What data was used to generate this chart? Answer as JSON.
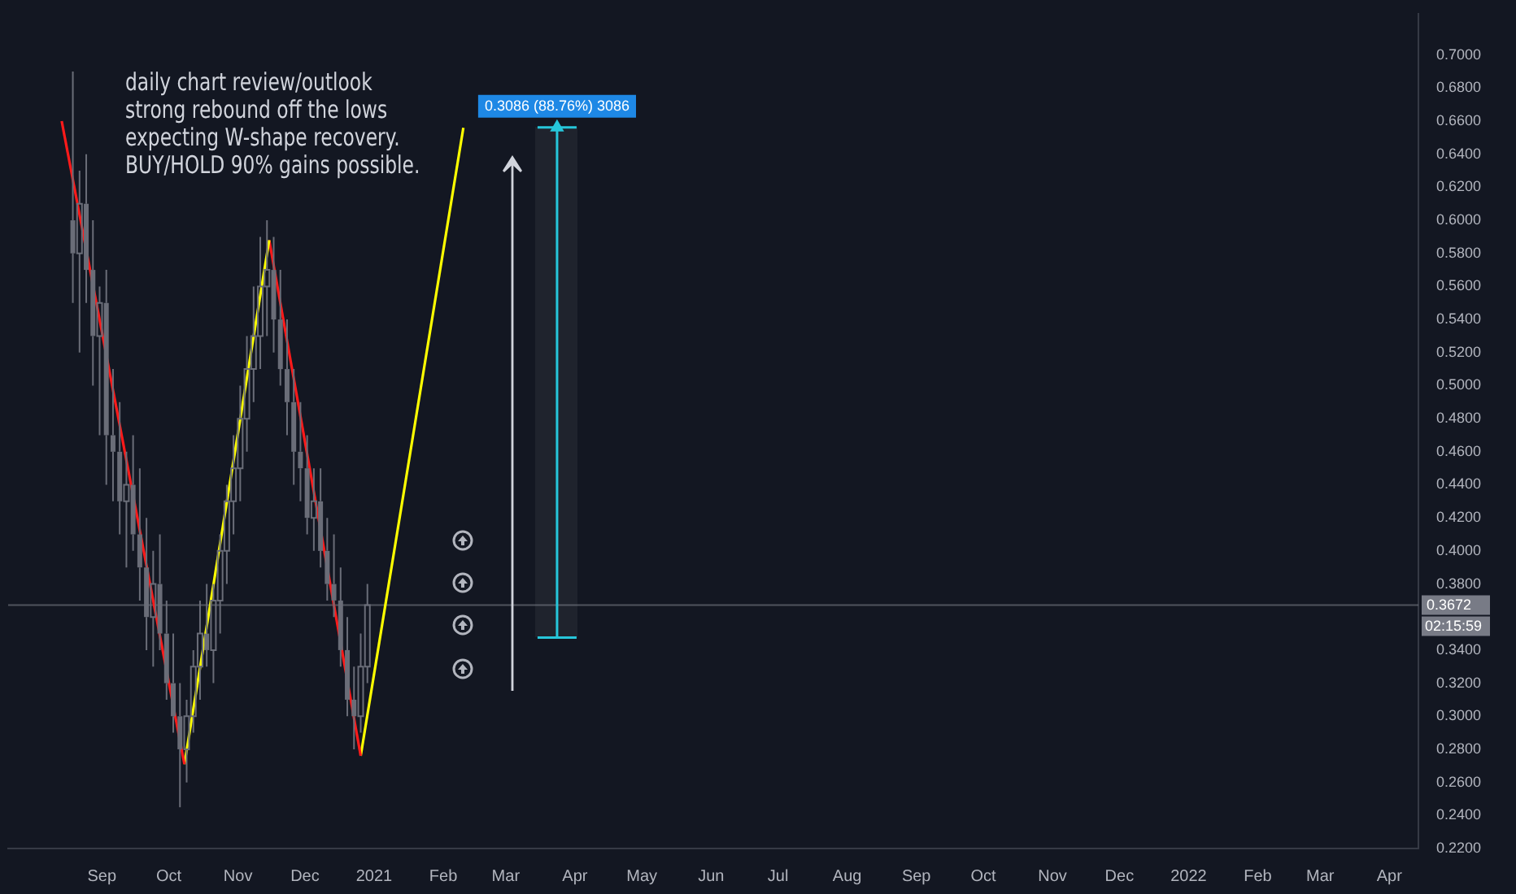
{
  "chart_data": {
    "type": "candlestick",
    "series": [
      {
        "color": "#6a6d78",
        "x": [
          "2020-08-19",
          "2020-08-22",
          "2020-08-25",
          "2020-08-28",
          "2020-08-31",
          "2020-09-03",
          "2020-09-06",
          "2020-09-09",
          "2020-09-12",
          "2020-09-15",
          "2020-09-18",
          "2020-09-21",
          "2020-09-24",
          "2020-09-27",
          "2020-09-30",
          "2020-10-03",
          "2020-10-06",
          "2020-10-09",
          "2020-10-12",
          "2020-10-15",
          "2020-10-18",
          "2020-10-21",
          "2020-10-24",
          "2020-10-27",
          "2020-10-30",
          "2020-11-02",
          "2020-11-05",
          "2020-11-08",
          "2020-11-11",
          "2020-11-14",
          "2020-11-17",
          "2020-11-20",
          "2020-11-23",
          "2020-11-26",
          "2020-11-29",
          "2020-12-02",
          "2020-12-05",
          "2020-12-08",
          "2020-12-11",
          "2020-12-14",
          "2020-12-17",
          "2020-12-20",
          "2020-12-23",
          "2020-12-26",
          "2020-12-29"
        ],
        "ohlc": [
          [
            0.6,
            0.69,
            0.55,
            0.58
          ],
          [
            0.58,
            0.63,
            0.52,
            0.61
          ],
          [
            0.61,
            0.64,
            0.55,
            0.57
          ],
          [
            0.57,
            0.6,
            0.5,
            0.53
          ],
          [
            0.53,
            0.56,
            0.47,
            0.55
          ],
          [
            0.55,
            0.57,
            0.44,
            0.47
          ],
          [
            0.47,
            0.51,
            0.43,
            0.46
          ],
          [
            0.46,
            0.49,
            0.41,
            0.43
          ],
          [
            0.43,
            0.46,
            0.39,
            0.44
          ],
          [
            0.44,
            0.47,
            0.4,
            0.41
          ],
          [
            0.41,
            0.45,
            0.37,
            0.39
          ],
          [
            0.39,
            0.42,
            0.34,
            0.36
          ],
          [
            0.36,
            0.4,
            0.33,
            0.38
          ],
          [
            0.38,
            0.41,
            0.34,
            0.35
          ],
          [
            0.35,
            0.37,
            0.31,
            0.32
          ],
          [
            0.32,
            0.35,
            0.29,
            0.3
          ],
          [
            0.3,
            0.32,
            0.245,
            0.28
          ],
          [
            0.28,
            0.31,
            0.26,
            0.3
          ],
          [
            0.3,
            0.34,
            0.29,
            0.33
          ],
          [
            0.33,
            0.37,
            0.31,
            0.35
          ],
          [
            0.35,
            0.38,
            0.33,
            0.34
          ],
          [
            0.34,
            0.38,
            0.32,
            0.37
          ],
          [
            0.37,
            0.41,
            0.35,
            0.4
          ],
          [
            0.4,
            0.44,
            0.38,
            0.43
          ],
          [
            0.43,
            0.47,
            0.41,
            0.45
          ],
          [
            0.45,
            0.5,
            0.43,
            0.48
          ],
          [
            0.48,
            0.53,
            0.46,
            0.51
          ],
          [
            0.51,
            0.56,
            0.49,
            0.53
          ],
          [
            0.53,
            0.59,
            0.51,
            0.56
          ],
          [
            0.56,
            0.6,
            0.53,
            0.57
          ],
          [
            0.57,
            0.59,
            0.52,
            0.54
          ],
          [
            0.54,
            0.57,
            0.5,
            0.51
          ],
          [
            0.51,
            0.54,
            0.47,
            0.49
          ],
          [
            0.49,
            0.51,
            0.44,
            0.46
          ],
          [
            0.46,
            0.49,
            0.43,
            0.45
          ],
          [
            0.45,
            0.47,
            0.41,
            0.42
          ],
          [
            0.42,
            0.45,
            0.4,
            0.43
          ],
          [
            0.43,
            0.45,
            0.39,
            0.4
          ],
          [
            0.4,
            0.42,
            0.37,
            0.38
          ],
          [
            0.38,
            0.41,
            0.36,
            0.37
          ],
          [
            0.37,
            0.39,
            0.33,
            0.34
          ],
          [
            0.34,
            0.36,
            0.3,
            0.31
          ],
          [
            0.31,
            0.33,
            0.28,
            0.3
          ],
          [
            0.3,
            0.35,
            0.29,
            0.33
          ],
          [
            0.33,
            0.38,
            0.32,
            0.3672
          ]
        ]
      },
      {
        "type": "line",
        "color": "#ff1a1a",
        "x": [
          "2020-08-14",
          "2020-10-08"
        ],
        "values": [
          0.66,
          0.271
        ]
      },
      {
        "type": "line",
        "color": "#ffff00",
        "x": [
          "2020-10-08",
          "2020-11-15"
        ],
        "values": [
          0.271,
          0.588
        ]
      },
      {
        "type": "line",
        "color": "#ff1a1a",
        "x": [
          "2020-11-15",
          "2020-12-26"
        ],
        "values": [
          0.588,
          0.276
        ]
      },
      {
        "type": "line",
        "color": "#ffff00",
        "x": [
          "2020-12-26",
          "2021-02-10"
        ],
        "values": [
          0.276,
          0.656
        ]
      },
      {
        "type": "scatter",
        "color": "#26c6da",
        "marker": "triangle",
        "x": [
          "2021-03-24"
        ],
        "values": [
          0.6562
        ],
        "errors": [
          [
            0.3476,
            0.6562
          ]
        ],
        "value_labels": [
          "0.3086 (88.76%) 3086"
        ]
      }
    ],
    "xlim": [
      "2020-07-21",
      "2022-04-14"
    ],
    "xticks": [
      {
        "value": "2020-09",
        "label": "Sep"
      },
      {
        "value": "2020-10",
        "label": "Oct"
      },
      {
        "value": "2020-11",
        "label": "Nov"
      },
      {
        "value": "2020-12",
        "label": "Dec"
      },
      {
        "value": "2021-01",
        "label": "2021"
      },
      {
        "value": "2021-02",
        "label": "Feb"
      },
      {
        "value": "2021-03",
        "label": "Mar"
      },
      {
        "value": "2021-04",
        "label": "Apr"
      },
      {
        "value": "2021-05",
        "label": "May"
      },
      {
        "value": "2021-06",
        "label": "Jun"
      },
      {
        "value": "2021-07",
        "label": "Jul"
      },
      {
        "value": "2021-08",
        "label": "Aug"
      },
      {
        "value": "2021-09",
        "label": "Sep"
      },
      {
        "value": "2021-10",
        "label": "Oct"
      },
      {
        "value": "2021-11",
        "label": "Nov"
      },
      {
        "value": "2021-12",
        "label": "Dec"
      },
      {
        "value": "2022-01",
        "label": "2022"
      },
      {
        "value": "2022-02",
        "label": "Feb"
      },
      {
        "value": "2022-03",
        "label": "Mar"
      },
      {
        "value": "2022-04",
        "label": "Apr"
      }
    ],
    "ylim": [
      0.22,
      0.725
    ],
    "yticks": [
      {
        "value": 0.22,
        "label": "0.2200"
      },
      {
        "value": 0.24,
        "label": "0.2400"
      },
      {
        "value": 0.26,
        "label": "0.2600"
      },
      {
        "value": 0.28,
        "label": "0.2800"
      },
      {
        "value": 0.3,
        "label": "0.3000"
      },
      {
        "value": 0.32,
        "label": "0.3200"
      },
      {
        "value": 0.34,
        "label": "0.3400"
      },
      {
        "value": 0.38,
        "label": "0.3800"
      },
      {
        "value": 0.4,
        "label": "0.4000"
      },
      {
        "value": 0.42,
        "label": "0.4200"
      },
      {
        "value": 0.44,
        "label": "0.4400"
      },
      {
        "value": 0.46,
        "label": "0.4600"
      },
      {
        "value": 0.48,
        "label": "0.4800"
      },
      {
        "value": 0.5,
        "label": "0.5000"
      },
      {
        "value": 0.52,
        "label": "0.5200"
      },
      {
        "value": 0.54,
        "label": "0.5400"
      },
      {
        "value": 0.56,
        "label": "0.5600"
      },
      {
        "value": 0.58,
        "label": "0.5800"
      },
      {
        "value": 0.6,
        "label": "0.6000"
      },
      {
        "value": 0.62,
        "label": "0.6200"
      },
      {
        "value": 0.64,
        "label": "0.6400"
      },
      {
        "value": 0.66,
        "label": "0.6600"
      },
      {
        "value": 0.68,
        "label": "0.6800"
      },
      {
        "value": 0.7,
        "label": "0.7000"
      }
    ],
    "ref_lines": [
      {
        "axis": "y",
        "value": 0.3672,
        "label": "0.3672",
        "color": "#787b86"
      }
    ],
    "annotations": [
      "daily chart review/outlook",
      "strong rebound off the lows",
      "expecting W-shape recovery.",
      "BUY/HOLD 90% gains possible.",
      "02:15:59"
    ],
    "grid": false,
    "legend": false
  }
}
